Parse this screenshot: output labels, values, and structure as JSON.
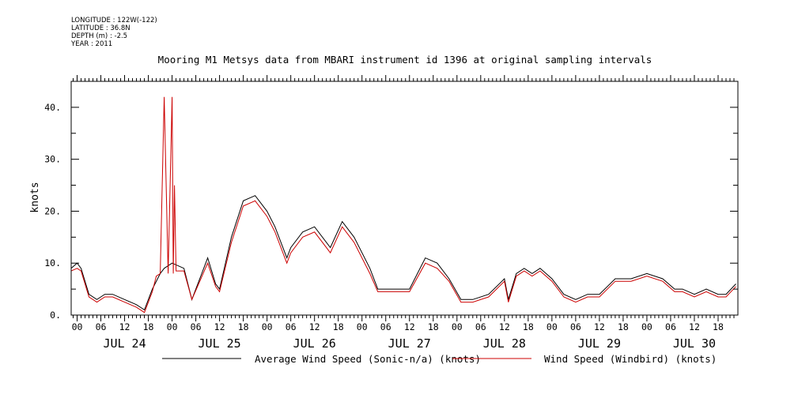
{
  "header": {
    "longitude": "LONGITUDE : 122W(-122)",
    "latitude": "LATITUDE : 36.8N",
    "depth": "DEPTH (m) : -2.5",
    "year": "YEAR : 2011"
  },
  "chart_data": {
    "type": "line",
    "title": "Mooring M1 Metsys data from MBARI instrument id 1396 at original sampling intervals",
    "ylabel": "knots",
    "xlabel": "",
    "x_unit": "hours since JUL 24 2011 00:00",
    "xlim": [
      -1.5,
      167
    ],
    "ylim": [
      0,
      45
    ],
    "yticks": [
      0,
      10,
      20,
      30,
      40
    ],
    "ytick_labels": [
      "0.",
      "10.",
      "20.",
      "30.",
      "40."
    ],
    "xtick_labels": [
      "00",
      "06",
      "12",
      "18",
      "00",
      "06",
      "12",
      "18",
      "00",
      "06",
      "12",
      "18",
      "00",
      "06",
      "12",
      "18",
      "00",
      "06",
      "12",
      "18",
      "00",
      "06",
      "12",
      "18",
      "00",
      "06",
      "12",
      "18"
    ],
    "day_labels": [
      "JUL 24",
      "JUL 25",
      "JUL 26",
      "JUL 27",
      "JUL 28",
      "JUL 29",
      "JUL 30"
    ],
    "legend_position": "bottom",
    "grid": false,
    "colors": {
      "series1": "#000000",
      "series2": "#cc0000"
    },
    "series": [
      {
        "name": "Average Wind Speed (Sonic-n/a) (knots)",
        "x": [
          -1.5,
          0,
          1,
          3,
          5,
          7,
          9,
          12,
          15,
          17,
          19,
          21,
          22,
          24,
          27,
          29,
          33,
          35,
          36,
          39,
          42,
          45,
          48,
          50,
          53,
          54,
          57,
          60,
          64,
          67,
          70,
          74,
          76,
          78,
          81,
          84,
          88,
          91,
          94,
          97,
          100,
          104,
          108,
          109,
          111,
          113,
          115,
          117,
          120,
          123,
          126,
          129,
          132,
          136,
          140,
          144,
          148,
          151,
          153,
          156,
          159,
          162,
          164,
          166.5
        ],
        "values": [
          9,
          10,
          9,
          4,
          3,
          4,
          4,
          3,
          2,
          1,
          5,
          8,
          9,
          10,
          9,
          3,
          11,
          6,
          5,
          15,
          22,
          23,
          20,
          17,
          11,
          13,
          16,
          17,
          13,
          18,
          15,
          9,
          5,
          5,
          5,
          5,
          11,
          10,
          7,
          3,
          3,
          4,
          7,
          3,
          8,
          9,
          8,
          9,
          7,
          4,
          3,
          4,
          4,
          7,
          7,
          8,
          7,
          5,
          5,
          4,
          5,
          4,
          4,
          6
        ]
      },
      {
        "name": "Wind Speed (Windbird) (knots)",
        "x": [
          -1.5,
          0,
          1,
          3,
          5,
          7,
          9,
          12,
          15,
          17,
          19,
          20,
          21,
          22,
          23,
          24,
          24.3,
          24.6,
          25,
          27,
          29,
          33,
          35,
          36,
          39,
          42,
          45,
          48,
          50,
          53,
          54,
          57,
          60,
          64,
          67,
          70,
          74,
          76,
          78,
          81,
          84,
          88,
          91,
          94,
          97,
          100,
          104,
          108,
          109,
          111,
          113,
          115,
          117,
          120,
          123,
          126,
          129,
          132,
          136,
          140,
          144,
          148,
          151,
          153,
          156,
          159,
          162,
          164,
          166.5
        ],
        "values": [
          8.5,
          9,
          8.5,
          3.5,
          2.5,
          3.5,
          3.5,
          2.5,
          1.5,
          0.5,
          4.5,
          7.5,
          8,
          42,
          8,
          42,
          8,
          25,
          8.5,
          8.5,
          3,
          10,
          5.5,
          4.5,
          14,
          21,
          22,
          19,
          16,
          10,
          12,
          15,
          16,
          12,
          17,
          14,
          8,
          4.5,
          4.5,
          4.5,
          4.5,
          10,
          9,
          6.5,
          2.5,
          2.5,
          3.5,
          6.5,
          2.5,
          7.5,
          8.5,
          7.5,
          8.5,
          6.5,
          3.5,
          2.5,
          3.5,
          3.5,
          6.5,
          6.5,
          7.5,
          6.5,
          4.5,
          4.5,
          3.5,
          4.5,
          3.5,
          3.5,
          5.5
        ]
      }
    ]
  }
}
